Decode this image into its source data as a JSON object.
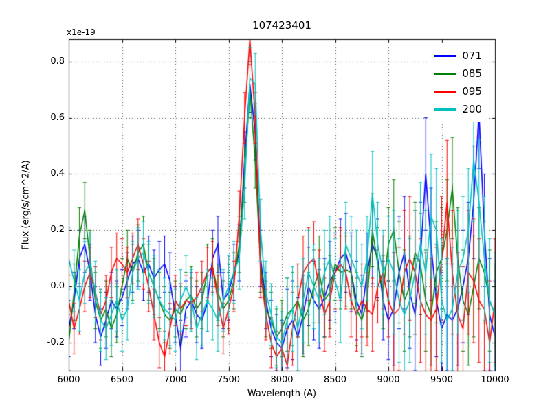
{
  "figure": {
    "background": "#ffffff"
  },
  "chart_data": {
    "type": "line",
    "title": "107423401",
    "xlabel": "Wavelength (A)",
    "ylabel": "Flux (erg/s/cm^2/A)",
    "y_offset_label": "x1e-19",
    "xlim": [
      6000,
      10000
    ],
    "ylim": [
      -0.3,
      0.88
    ],
    "xticks": [
      6000,
      6500,
      7000,
      7500,
      8000,
      8500,
      9000,
      9500,
      10000
    ],
    "xtick_labels": [
      "6000",
      "6500",
      "7000",
      "7500",
      "8000",
      "8500",
      "9000",
      "9500",
      "10000"
    ],
    "yticks": [
      -0.2,
      0.0,
      0.2,
      0.4,
      0.6,
      0.8
    ],
    "ytick_labels": [
      "-0.2",
      "0.0",
      "0.2",
      "0.4",
      "0.6",
      "0.8"
    ],
    "grid": true,
    "grid_style": "dotted",
    "grid_color": "#444444",
    "legend_position": "upper right",
    "annotations": "emission line peak near 7700 A, all series; noise level increases toward 10000 A",
    "x": [
      6000,
      6050,
      6100,
      6150,
      6200,
      6250,
      6300,
      6350,
      6400,
      6450,
      6500,
      6550,
      6600,
      6650,
      6700,
      6750,
      6800,
      6850,
      6900,
      6950,
      7000,
      7050,
      7100,
      7150,
      7200,
      7250,
      7300,
      7350,
      7400,
      7450,
      7500,
      7550,
      7600,
      7650,
      7700,
      7750,
      7800,
      7850,
      7900,
      7950,
      8000,
      8050,
      8100,
      8150,
      8200,
      8250,
      8300,
      8350,
      8400,
      8450,
      8500,
      8550,
      8600,
      8650,
      8700,
      8750,
      8800,
      8850,
      8900,
      8950,
      9000,
      9050,
      9100,
      9150,
      9200,
      9250,
      9300,
      9350,
      9400,
      9450,
      9500,
      9550,
      9600,
      9650,
      9700,
      9750,
      9800,
      9850,
      9900,
      9950,
      10000
    ],
    "series": [
      {
        "name": "071",
        "color": "#0000ff",
        "values": [
          -0.15,
          -0.05,
          0.1,
          0.15,
          0.05,
          -0.1,
          -0.18,
          -0.12,
          -0.05,
          -0.08,
          -0.04,
          0.02,
          0.08,
          0.1,
          0.05,
          0.08,
          0.03,
          0.06,
          0.08,
          0.02,
          -0.1,
          -0.22,
          -0.08,
          -0.05,
          -0.1,
          -0.12,
          -0.06,
          0.1,
          0.15,
          -0.05,
          -0.02,
          0.05,
          0.12,
          0.45,
          0.72,
          0.55,
          0.1,
          -0.05,
          -0.15,
          -0.2,
          -0.22,
          -0.15,
          -0.12,
          -0.18,
          -0.1,
          0.0,
          -0.05,
          -0.08,
          -0.04,
          0.02,
          0.05,
          0.1,
          0.12,
          0.05,
          -0.05,
          -0.1,
          0.05,
          0.15,
          0.1,
          -0.05,
          -0.12,
          -0.08,
          0.05,
          0.12,
          -0.02,
          -0.1,
          0.1,
          0.4,
          0.15,
          -0.05,
          -0.15,
          -0.1,
          -0.12,
          -0.08,
          0.0,
          0.1,
          0.3,
          0.62,
          0.2,
          -0.1,
          -0.18
        ],
        "yerr_profile": [
          {
            "until": 8000,
            "err": 0.1
          },
          {
            "until": 9000,
            "err": 0.14
          },
          {
            "until": 10001,
            "err": 0.2
          }
        ]
      },
      {
        "name": "085",
        "color": "#007f00",
        "values": [
          -0.2,
          -0.02,
          0.18,
          0.27,
          0.1,
          -0.05,
          -0.12,
          -0.08,
          -0.15,
          -0.1,
          0.0,
          0.1,
          0.05,
          0.12,
          0.15,
          0.05,
          0.0,
          -0.05,
          -0.1,
          -0.12,
          -0.08,
          -0.1,
          -0.05,
          -0.03,
          -0.08,
          -0.05,
          0.05,
          0.07,
          -0.02,
          -0.08,
          -0.05,
          0.02,
          0.15,
          0.4,
          0.7,
          0.45,
          0.08,
          -0.08,
          -0.12,
          -0.18,
          -0.15,
          -0.1,
          -0.08,
          -0.05,
          -0.12,
          -0.08,
          0.0,
          0.05,
          -0.05,
          -0.02,
          0.08,
          0.05,
          0.06,
          0.05,
          -0.08,
          -0.12,
          -0.05,
          0.2,
          0.08,
          -0.02,
          0.15,
          0.2,
          0.05,
          -0.05,
          0.0,
          0.12,
          0.08,
          -0.05,
          -0.1,
          0.05,
          0.1,
          0.2,
          0.35,
          0.1,
          -0.05,
          -0.1,
          0.0,
          0.1,
          0.05,
          -0.05,
          -0.1
        ],
        "yerr_profile": [
          {
            "until": 8000,
            "err": 0.1
          },
          {
            "until": 9000,
            "err": 0.13
          },
          {
            "until": 10001,
            "err": 0.18
          }
        ]
      },
      {
        "name": "095",
        "color": "#ff0000",
        "values": [
          -0.05,
          -0.15,
          -0.08,
          0.0,
          0.05,
          -0.02,
          -0.1,
          -0.05,
          0.05,
          0.1,
          0.08,
          0.05,
          0.1,
          0.15,
          0.08,
          0.0,
          -0.1,
          -0.2,
          -0.25,
          -0.15,
          -0.05,
          -0.08,
          -0.05,
          -0.06,
          -0.04,
          0.0,
          0.05,
          0.07,
          -0.05,
          -0.15,
          -0.08,
          0.0,
          0.25,
          0.6,
          0.88,
          0.6,
          0.05,
          -0.1,
          -0.2,
          -0.25,
          -0.22,
          -0.28,
          -0.15,
          -0.05,
          0.05,
          0.08,
          0.1,
          0.0,
          -0.1,
          -0.05,
          0.05,
          0.08,
          0.05,
          -0.05,
          -0.1,
          -0.05,
          -0.08,
          -0.1,
          0.0,
          0.05,
          -0.05,
          -0.1,
          -0.08,
          0.05,
          0.1,
          0.05,
          -0.05,
          -0.1,
          -0.12,
          -0.08,
          0.1,
          0.3,
          0.05,
          -0.1,
          -0.15,
          0.05,
          0.02,
          -0.05,
          -0.08,
          -0.2,
          -0.05
        ],
        "yerr_profile": [
          {
            "until": 8000,
            "err": 0.09
          },
          {
            "until": 9000,
            "err": 0.13
          },
          {
            "until": 10001,
            "err": 0.22
          }
        ]
      },
      {
        "name": "200",
        "color": "#00bfbf",
        "values": [
          0.1,
          0.02,
          -0.05,
          0.05,
          0.08,
          -0.02,
          -0.12,
          -0.15,
          -0.1,
          -0.05,
          -0.12,
          -0.08,
          0.05,
          0.1,
          0.12,
          0.05,
          0.0,
          -0.05,
          -0.08,
          -0.1,
          -0.12,
          -0.05,
          0.0,
          -0.05,
          -0.15,
          -0.1,
          -0.05,
          -0.08,
          -0.12,
          -0.05,
          0.0,
          0.05,
          0.1,
          0.35,
          0.74,
          0.72,
          0.2,
          -0.02,
          -0.1,
          -0.18,
          -0.2,
          -0.12,
          -0.08,
          -0.15,
          -0.05,
          0.05,
          0.0,
          -0.05,
          0.05,
          0.1,
          0.02,
          -0.05,
          0.15,
          0.1,
          0.05,
          0.0,
          0.1,
          0.33,
          0.15,
          0.05,
          0.1,
          0.05,
          -0.05,
          -0.1,
          -0.05,
          0.05,
          0.15,
          0.05,
          0.25,
          0.2,
          -0.05,
          -0.12,
          -0.08,
          0.05,
          0.1,
          0.2,
          0.45,
          0.3,
          0.1,
          -0.05,
          -0.1
        ],
        "yerr_profile": [
          {
            "until": 8000,
            "err": 0.11
          },
          {
            "until": 9000,
            "err": 0.15
          },
          {
            "until": 10001,
            "err": 0.22
          }
        ]
      }
    ]
  }
}
